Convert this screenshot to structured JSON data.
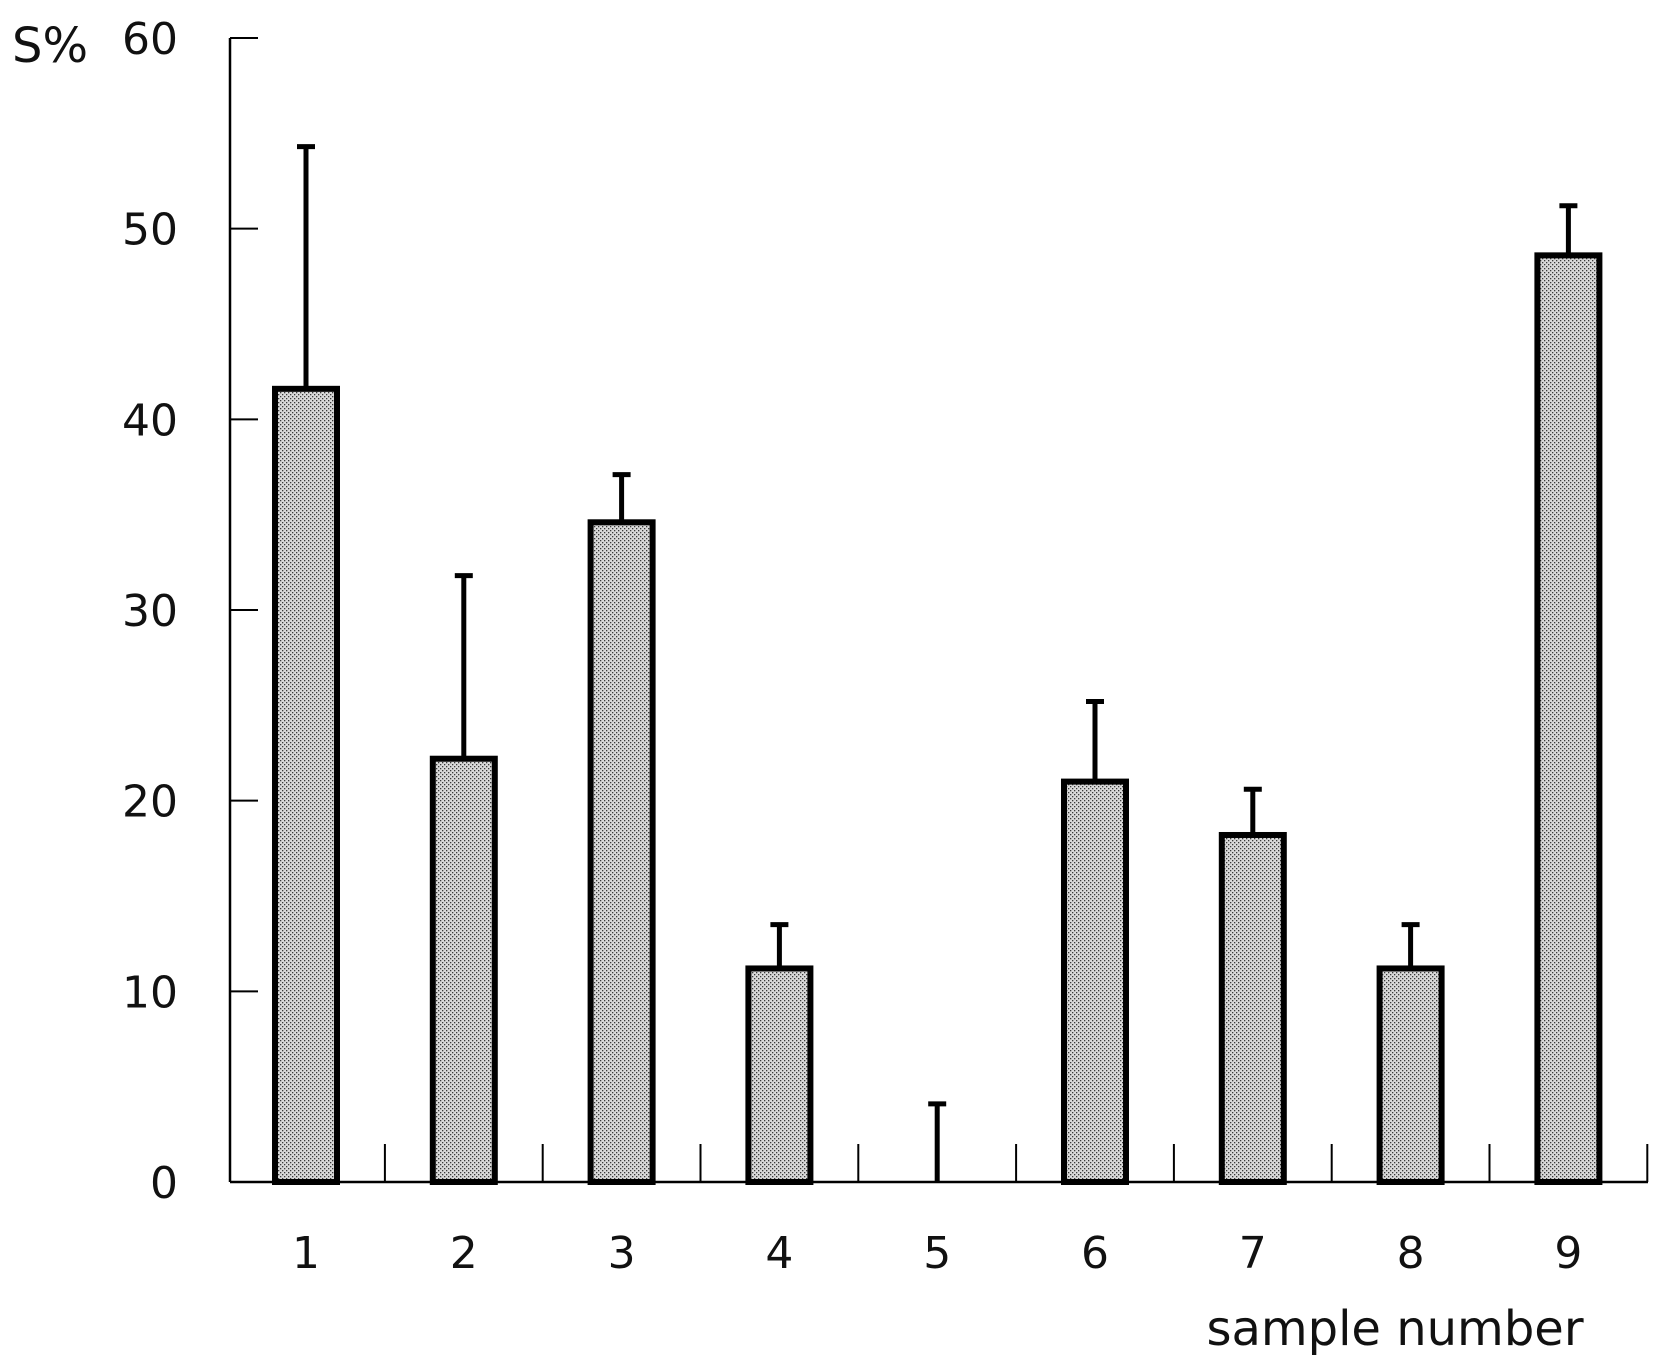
{
  "chart_data": {
    "type": "bar",
    "ylabel": "S%",
    "xlabel": "sample number",
    "ylim": [
      0,
      60
    ],
    "yticks": [
      0,
      10,
      20,
      30,
      40,
      50,
      60
    ],
    "categories": [
      "1",
      "2",
      "3",
      "4",
      "5",
      "6",
      "7",
      "8",
      "9"
    ],
    "values": [
      41.6,
      22.2,
      34.6,
      11.2,
      0,
      21,
      18.2,
      11.2,
      48.6
    ],
    "error_upper": [
      12.7,
      9.6,
      2.5,
      2.3,
      4.1,
      4.2,
      2.4,
      2.3,
      2.6
    ],
    "bar_fill": "stippled-gray",
    "grid": false,
    "legend": "none"
  }
}
